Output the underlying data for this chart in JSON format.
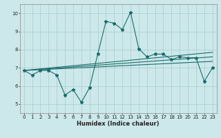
{
  "xlabel": "Humidex (Indice chaleur)",
  "background_color": "#cce8ea",
  "grid_color": "#aecfd2",
  "line_color": "#1a6b6b",
  "xlim": [
    -0.5,
    23.5
  ],
  "ylim": [
    4.5,
    10.5
  ],
  "xticks": [
    0,
    1,
    2,
    3,
    4,
    5,
    6,
    7,
    8,
    9,
    10,
    11,
    12,
    13,
    14,
    15,
    16,
    17,
    18,
    19,
    20,
    21,
    22,
    23
  ],
  "yticks": [
    5,
    6,
    7,
    8,
    9,
    10
  ],
  "main_series": [
    [
      0,
      6.85
    ],
    [
      1,
      6.6
    ],
    [
      2,
      6.85
    ],
    [
      3,
      6.85
    ],
    [
      4,
      6.6
    ],
    [
      5,
      5.5
    ],
    [
      6,
      5.8
    ],
    [
      7,
      5.1
    ],
    [
      8,
      5.9
    ],
    [
      9,
      7.75
    ],
    [
      10,
      9.55
    ],
    [
      11,
      9.45
    ],
    [
      12,
      9.1
    ],
    [
      13,
      10.05
    ],
    [
      14,
      8.05
    ],
    [
      15,
      7.6
    ],
    [
      16,
      7.75
    ],
    [
      17,
      7.75
    ],
    [
      18,
      7.45
    ],
    [
      19,
      7.6
    ],
    [
      20,
      7.55
    ],
    [
      21,
      7.55
    ],
    [
      22,
      6.25
    ],
    [
      23,
      7.0
    ]
  ],
  "smooth_lines": [
    [
      [
        0,
        6.85
      ],
      [
        23,
        7.85
      ]
    ],
    [
      [
        0,
        6.85
      ],
      [
        23,
        7.6
      ]
    ],
    [
      [
        0,
        6.85
      ],
      [
        23,
        7.35
      ]
    ]
  ]
}
